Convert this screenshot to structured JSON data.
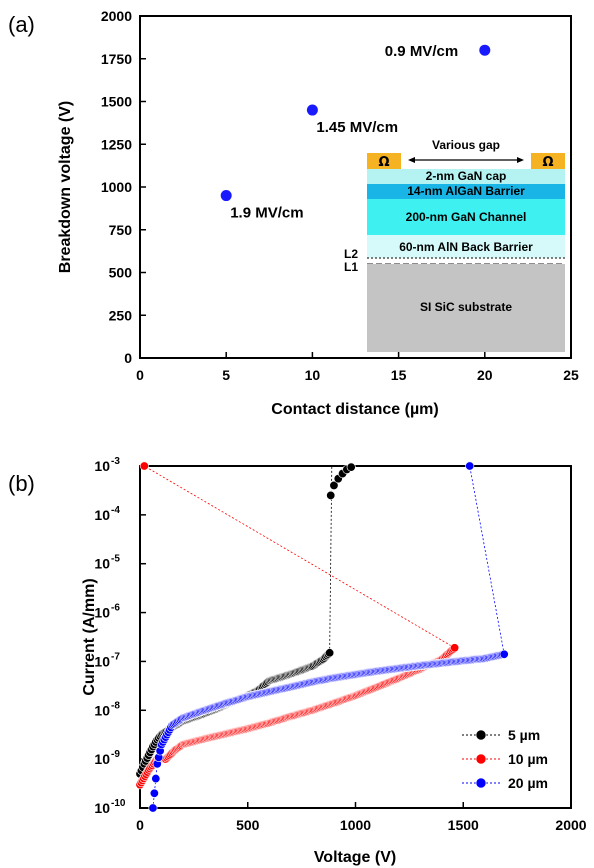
{
  "chart_data": [
    {
      "panel_label": "(a)",
      "type": "scatter",
      "xlabel": "Contact distance (µm)",
      "ylabel": "Breakdown voltage (V)",
      "xlim": [
        0,
        25
      ],
      "ylim": [
        0,
        2000
      ],
      "xticks": [
        "0",
        "5",
        "10",
        "15",
        "20",
        "25"
      ],
      "yticks": [
        "0",
        "250",
        "500",
        "750",
        "1000",
        "1250",
        "1500",
        "1750",
        "2000"
      ],
      "marker_color": "#1a1aff",
      "points": [
        {
          "x": 5,
          "y": 950,
          "label": "1.9 MV/cm"
        },
        {
          "x": 10,
          "y": 1450,
          "label": "1.45 MV/cm"
        },
        {
          "x": 20,
          "y": 1800,
          "label": "0.9 MV/cm"
        }
      ],
      "inset": {
        "gap_label": "Various gap",
        "contact_symbol": "Ω",
        "layers": [
          {
            "label": "2-nm GaN cap",
            "color": "#b5f2f2"
          },
          {
            "label": "14-nm AlGaN Barrier",
            "color": "#19b5e6"
          },
          {
            "label": "200-nm GaN Channel",
            "color": "#3ff0f0"
          },
          {
            "label": "60-nm AlN Back Barrier",
            "color": "#d6fafa"
          },
          {
            "label": "SI SiC substrate",
            "color": "#c4c4c4"
          }
        ],
        "interface_labels": [
          "L2",
          "L1"
        ],
        "contact_color": "#f5b324"
      }
    },
    {
      "panel_label": "(b)",
      "type": "scatter",
      "xlabel": "Voltage (V)",
      "ylabel": "Current (A/mm)",
      "xlim": [
        0,
        2000
      ],
      "ylim": [
        1e-10,
        0.001
      ],
      "yscale": "log",
      "xticks": [
        "0",
        "500",
        "1000",
        "1500",
        "2000"
      ],
      "yticks": [
        {
          "mant": "10",
          "exp": "-10"
        },
        {
          "mant": "10",
          "exp": "-9"
        },
        {
          "mant": "10",
          "exp": "-8"
        },
        {
          "mant": "10",
          "exp": "-7"
        },
        {
          "mant": "10",
          "exp": "-6"
        },
        {
          "mant": "10",
          "exp": "-5"
        },
        {
          "mant": "10",
          "exp": "-4"
        },
        {
          "mant": "10",
          "exp": "-3"
        }
      ],
      "legend_position": "bottom-right",
      "series": [
        {
          "name": "5 µm",
          "color": "#000000",
          "points": [
            [
              0,
              5e-10
            ],
            [
              20,
              8e-10
            ],
            [
              40,
              1.2e-09
            ],
            [
              60,
              1.8e-09
            ],
            [
              80,
              2.5e-09
            ],
            [
              100,
              3.2e-09
            ],
            [
              150,
              4.5e-09
            ],
            [
              200,
              6e-09
            ],
            [
              300,
              8.5e-09
            ],
            [
              400,
              1.3e-08
            ],
            [
              500,
              2e-08
            ],
            [
              550,
              2.6e-08
            ],
            [
              600,
              4e-08
            ],
            [
              700,
              5.5e-08
            ],
            [
              800,
              8e-08
            ],
            [
              850,
              1.1e-07
            ],
            [
              880,
              1.5e-07
            ]
          ],
          "jump": [
            [
              880,
              1.5e-07
            ],
            [
              890,
              0.001
            ]
          ],
          "post": [
            [
              885,
              0.00025
            ],
            [
              900,
              0.0004
            ],
            [
              920,
              0.00055
            ],
            [
              940,
              0.0007
            ],
            [
              960,
              0.00085
            ],
            [
              980,
              0.00095
            ]
          ]
        },
        {
          "name": "10 µm",
          "color": "#ff0000",
          "points": [
            [
              0,
              3e-10
            ],
            [
              40,
              6e-10
            ],
            [
              80,
              1e-09
            ],
            [
              120,
              1e-09
            ],
            [
              160,
              1.5e-09
            ],
            [
              200,
              2e-09
            ],
            [
              300,
              2.6e-09
            ],
            [
              400,
              3.3e-09
            ],
            [
              500,
              4.2e-09
            ],
            [
              600,
              5.5e-09
            ],
            [
              700,
              7.5e-09
            ],
            [
              800,
              1e-08
            ],
            [
              900,
              1.4e-08
            ],
            [
              1000,
              2e-08
            ],
            [
              1100,
              3e-08
            ],
            [
              1200,
              4.5e-08
            ],
            [
              1300,
              7e-08
            ],
            [
              1400,
              1.1e-07
            ],
            [
              1460,
              1.9e-07
            ]
          ],
          "jump": [
            [
              1460,
              1.9e-07
            ],
            [
              20,
              0.001
            ]
          ],
          "post": [
            [
              20,
              0.001
            ]
          ]
        },
        {
          "name": "20 µm",
          "color": "#0000ff",
          "points": [
            [
              60,
              1e-10
            ],
            [
              80,
              8e-10
            ],
            [
              100,
              2e-09
            ],
            [
              150,
              5e-09
            ],
            [
              200,
              7e-09
            ],
            [
              300,
              1e-08
            ],
            [
              400,
              1.4e-08
            ],
            [
              500,
              1.9e-08
            ],
            [
              600,
              2.4e-08
            ],
            [
              700,
              3e-08
            ],
            [
              800,
              3.8e-08
            ],
            [
              900,
              4.6e-08
            ],
            [
              1000,
              5.4e-08
            ],
            [
              1100,
              6.3e-08
            ],
            [
              1200,
              7.2e-08
            ],
            [
              1300,
              8.2e-08
            ],
            [
              1400,
              9.2e-08
            ],
            [
              1500,
              1.03e-07
            ],
            [
              1600,
              1.15e-07
            ],
            [
              1690,
              1.4e-07
            ]
          ],
          "jump": [
            [
              1690,
              1.4e-07
            ],
            [
              1530,
              0.001
            ]
          ],
          "post": [
            [
              1530,
              0.001
            ]
          ]
        }
      ]
    }
  ]
}
